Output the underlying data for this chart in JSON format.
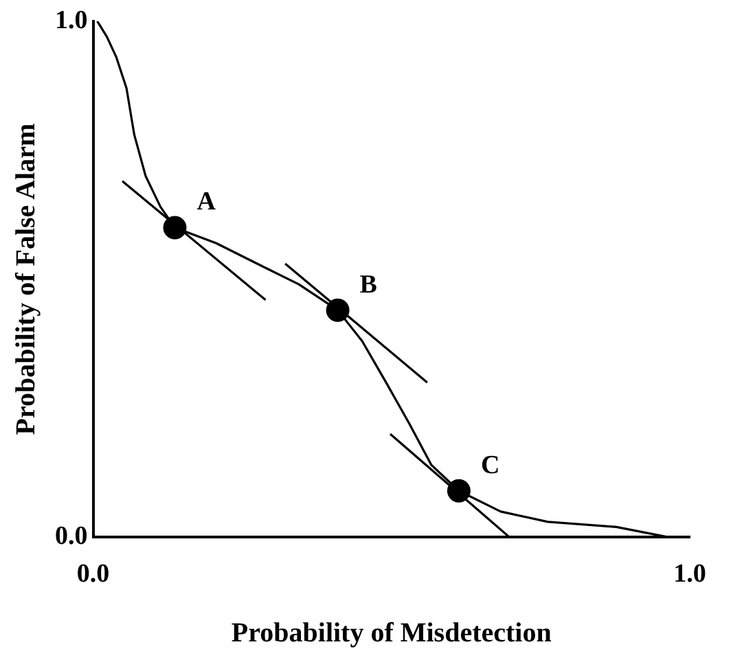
{
  "chart_data": {
    "type": "line",
    "xlabel": "Probability of Misdetection",
    "ylabel": "Probability of False Alarm",
    "xlim": [
      0,
      1
    ],
    "ylim": [
      0,
      1
    ],
    "xticks": [
      {
        "value": 0,
        "label": "0.0"
      },
      {
        "value": 1,
        "label": "1.0"
      }
    ],
    "yticks": [
      {
        "value": 0,
        "label": "0.0"
      },
      {
        "value": 1,
        "label": "1.0"
      }
    ],
    "grid": false,
    "legend": false,
    "series": [
      {
        "color": "#000000",
        "marker": "none",
        "x": [
          0.007,
          0.023,
          0.039,
          0.056,
          0.069,
          0.088,
          0.113,
          0.137,
          0.206,
          0.275,
          0.345,
          0.41,
          0.451,
          0.491,
          0.53,
          0.567,
          0.613,
          0.683,
          0.762,
          0.877,
          0.965
        ],
        "values": [
          1.0,
          0.97,
          0.93,
          0.87,
          0.78,
          0.7,
          0.64,
          0.6,
          0.57,
          0.53,
          0.49,
          0.44,
          0.38,
          0.3,
          0.22,
          0.14,
          0.09,
          0.05,
          0.03,
          0.02,
          0.0
        ]
      },
      {
        "color": "#000000",
        "marker": "none",
        "x": [
          0.049,
          0.289
        ],
        "values": [
          0.69,
          0.46
        ]
      },
      {
        "color": "#000000",
        "marker": "none",
        "x": [
          0.322,
          0.56
        ],
        "values": [
          0.53,
          0.3
        ]
      },
      {
        "color": "#000000",
        "marker": "none",
        "x": [
          0.498,
          0.698
        ],
        "values": [
          0.2,
          0.0
        ]
      },
      {
        "type": "scatter",
        "color": "#000000",
        "marker": "circle",
        "x": [
          0.137,
          0.41,
          0.613
        ],
        "values": [
          0.6,
          0.44,
          0.09
        ]
      }
    ],
    "annotations": [
      {
        "text": "A",
        "x": 0.137,
        "y": 0.6
      },
      {
        "text": "B",
        "x": 0.41,
        "y": 0.44
      },
      {
        "text": "C",
        "x": 0.613,
        "y": 0.09
      }
    ]
  }
}
